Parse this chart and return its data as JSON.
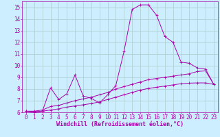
{
  "bg_color": "#cceeff",
  "line_color": "#aa00aa",
  "grid_color": "#aacccc",
  "xlabel": "Windchill (Refroidissement éolien,°C)",
  "xlabel_fontsize": 6,
  "tick_fontsize": 5.5,
  "xlim": [
    -0.5,
    23.5
  ],
  "ylim": [
    6,
    15.5
  ],
  "yticks": [
    6,
    7,
    8,
    9,
    10,
    11,
    12,
    13,
    14,
    15
  ],
  "xticks": [
    0,
    1,
    2,
    3,
    4,
    5,
    6,
    7,
    8,
    9,
    10,
    11,
    12,
    13,
    14,
    15,
    16,
    17,
    18,
    19,
    20,
    21,
    22,
    23
  ],
  "line1_x": [
    0,
    1,
    2,
    3,
    4,
    5,
    6,
    7,
    8,
    9,
    10,
    11,
    12,
    13,
    14,
    15,
    16,
    17,
    18,
    19,
    20,
    21,
    22,
    23
  ],
  "line1_y": [
    6.1,
    6.0,
    6.1,
    8.1,
    7.1,
    7.6,
    9.2,
    7.4,
    7.2,
    6.8,
    7.5,
    8.3,
    11.2,
    14.8,
    15.2,
    15.2,
    14.3,
    12.5,
    12.0,
    10.3,
    10.2,
    9.8,
    9.7,
    8.4
  ],
  "line2_x": [
    0,
    1,
    2,
    3,
    4,
    5,
    6,
    7,
    8,
    9,
    10,
    11,
    12,
    13,
    14,
    15,
    16,
    17,
    18,
    19,
    20,
    21,
    22,
    23
  ],
  "line2_y": [
    6.1,
    6.1,
    6.2,
    6.5,
    6.6,
    6.8,
    7.0,
    7.15,
    7.3,
    7.5,
    7.7,
    8.0,
    8.2,
    8.4,
    8.6,
    8.8,
    8.9,
    9.0,
    9.1,
    9.2,
    9.3,
    9.5,
    9.55,
    8.4
  ],
  "line3_x": [
    0,
    1,
    2,
    3,
    4,
    5,
    6,
    7,
    8,
    9,
    10,
    11,
    12,
    13,
    14,
    15,
    16,
    17,
    18,
    19,
    20,
    21,
    22,
    23
  ],
  "line3_y": [
    6.1,
    6.05,
    6.1,
    6.2,
    6.3,
    6.45,
    6.55,
    6.65,
    6.75,
    6.9,
    7.1,
    7.3,
    7.5,
    7.7,
    7.9,
    8.05,
    8.15,
    8.25,
    8.35,
    8.45,
    8.5,
    8.52,
    8.52,
    8.4
  ]
}
